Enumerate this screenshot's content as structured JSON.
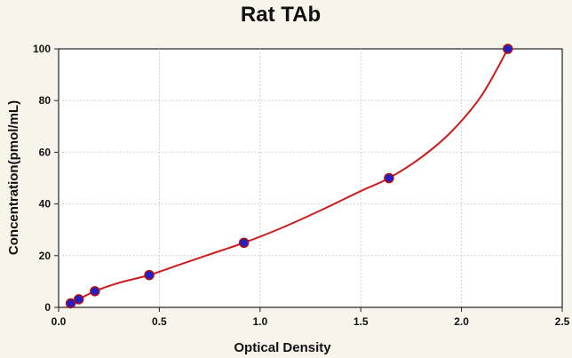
{
  "chart_data": {
    "type": "scatter",
    "title": "Rat TAb",
    "xlabel": "Optical Density",
    "ylabel": "Concentration(pmol/mL)",
    "xlim": [
      0,
      2.5
    ],
    "ylim": [
      0,
      100
    ],
    "x_ticks": [
      "0.0",
      "0.5",
      "1.0",
      "1.5",
      "2.0",
      "2.5"
    ],
    "y_ticks": [
      "0",
      "20",
      "40",
      "60",
      "80",
      "100"
    ],
    "grid": true,
    "series": [
      {
        "x": [
          0.06,
          0.1,
          0.18,
          0.45,
          0.92,
          1.64,
          2.23
        ],
        "y": [
          1.56,
          3.12,
          6.25,
          12.5,
          25,
          50,
          100
        ],
        "marker_color": "#2020c8",
        "marker_edge_color": "#b01010"
      }
    ],
    "fit_curve": {
      "x": [
        0.05,
        0.06,
        0.1,
        0.18,
        0.3,
        0.45,
        0.6,
        0.75,
        0.92,
        1.1,
        1.3,
        1.5,
        1.64,
        1.8,
        1.95,
        2.1,
        2.23
      ],
      "y": [
        1.0,
        1.56,
        3.12,
        6.25,
        9.5,
        12.5,
        16.5,
        20.5,
        25,
        30.5,
        37.5,
        45,
        50,
        58,
        68,
        82,
        100
      ],
      "color": "#cc1c1c"
    },
    "colors": {
      "background": "#f7f4ec",
      "plot_area": "#ffffff",
      "grid": "#cfcfcf"
    }
  }
}
